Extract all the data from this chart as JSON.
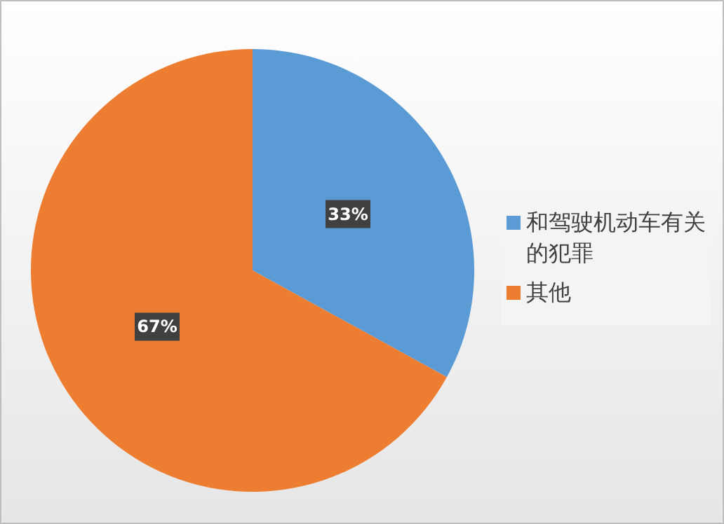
{
  "chart_data": {
    "type": "pie",
    "categories": [
      "和驾驶机动车有关的犯罪",
      "其他"
    ],
    "values": [
      33,
      67
    ],
    "colors": [
      "#5b9bd5",
      "#ed7d31"
    ],
    "value_labels": [
      "33%",
      "67%"
    ],
    "legend": "right"
  }
}
